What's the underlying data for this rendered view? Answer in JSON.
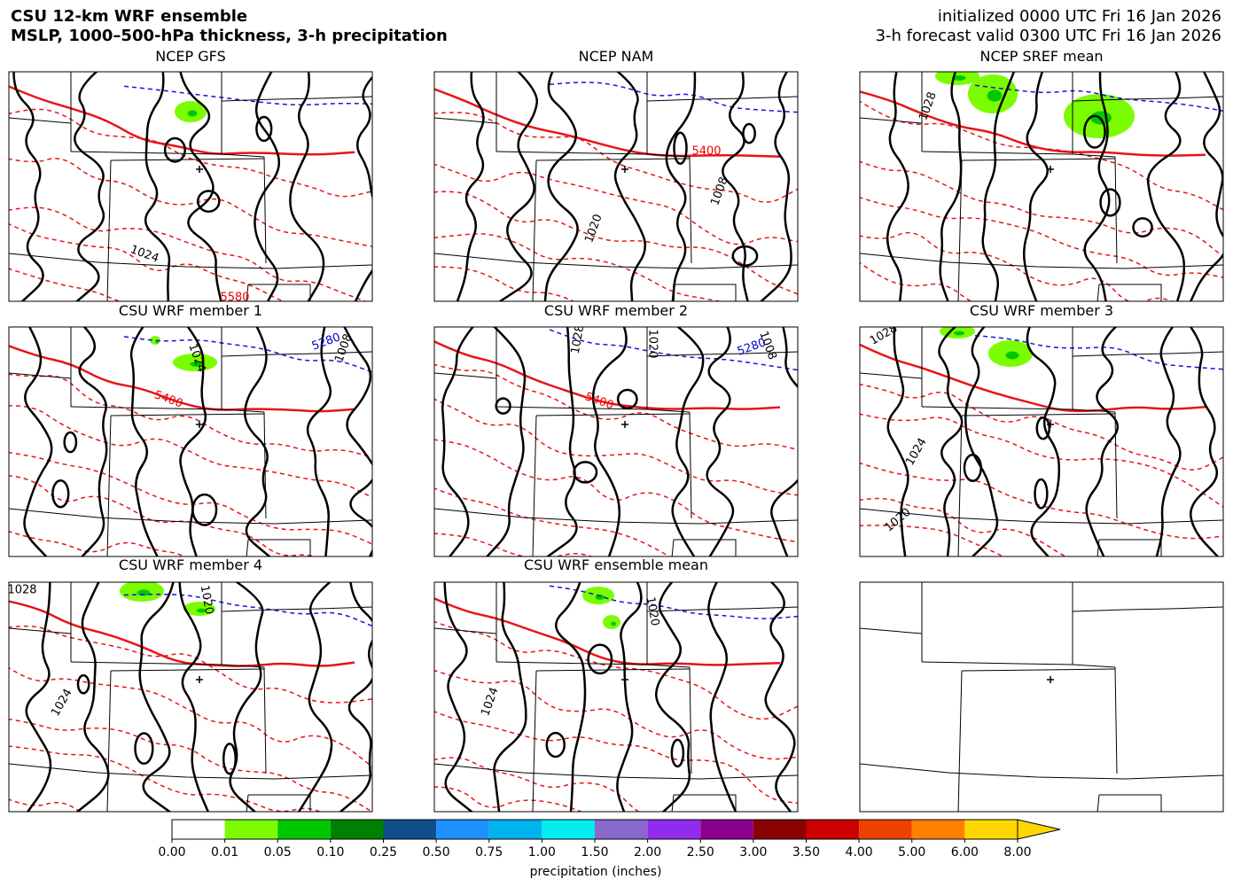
{
  "header": {
    "title": [
      "CSU 12-km WRF ensemble",
      "MSLP, 1000–500-hPa thickness, 3-h precipitation"
    ],
    "info": [
      "initialized 0000 UTC Fri 16 Jan 2026",
      "3-h forecast valid 0300 UTC Fri 16 Jan 2026"
    ]
  },
  "panels": [
    {
      "title": "NCEP GFS",
      "contour_labels": [
        "1024",
        "5580"
      ]
    },
    {
      "title": "NCEP NAM",
      "contour_labels": [
        "5400",
        "1020",
        "1008"
      ]
    },
    {
      "title": "NCEP SREF mean",
      "contour_labels": [
        "1028"
      ]
    },
    {
      "title": "CSU WRF member 1",
      "contour_labels": [
        "1024",
        "5400",
        "5280",
        "1008"
      ]
    },
    {
      "title": "CSU WRF member 2",
      "contour_labels": [
        "1028",
        "1020",
        "5400",
        "5280",
        "1008"
      ]
    },
    {
      "title": "CSU WRF member 3",
      "contour_labels": [
        "1028",
        "1024",
        "1020"
      ]
    },
    {
      "title": "CSU WRF member 4",
      "contour_labels": [
        "1028",
        "1020",
        "1024"
      ]
    },
    {
      "title": "CSU WRF ensemble mean",
      "contour_labels": [
        "1020",
        "1024"
      ]
    }
  ],
  "colorbar": {
    "label": "precipitation (inches)",
    "extend": "max",
    "ticks": [
      {
        "value": 0,
        "label": "0.00"
      },
      0.01,
      0.05,
      {
        "value": 0.1,
        "label": "0.10"
      },
      0.25,
      {
        "value": 0.5,
        "label": "0.50"
      },
      0.75,
      {
        "value": 1,
        "label": "1.00"
      },
      {
        "value": 1.5,
        "label": "1.50"
      },
      {
        "value": 2,
        "label": "2.00"
      },
      {
        "value": 2.5,
        "label": "2.50"
      },
      {
        "value": 3,
        "label": "3.00"
      },
      {
        "value": 3.5,
        "label": "3.50"
      },
      {
        "value": 4,
        "label": "4.00"
      },
      {
        "value": 5,
        "label": "5.00"
      },
      {
        "value": 6,
        "label": "6.00"
      },
      {
        "value": 8,
        "label": "8.00"
      }
    ],
    "colors": [
      "#ffffff",
      "#7cfc00",
      "#00c800",
      "#008000",
      "#104e8b",
      "#1e90ff",
      "#00b2ee",
      "#00eeee",
      "#8968cd",
      "#912cee",
      "#8b008b",
      "#8b0000",
      "#cd0000",
      "#ee4000",
      "#ff7f00",
      "#ffd700"
    ]
  }
}
